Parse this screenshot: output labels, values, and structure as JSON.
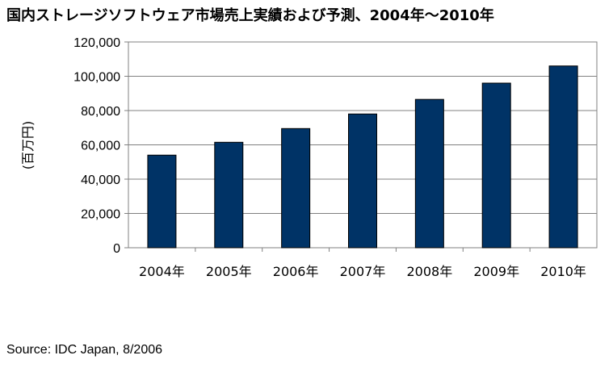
{
  "chart_data": {
    "type": "bar",
    "title": "国内ストレージソフトウェア市場売上実績および予測、2004年～2010年",
    "ylabel": "(百万円)",
    "xlabel": "",
    "categories": [
      "2004年",
      "2005年",
      "2006年",
      "2007年",
      "2008年",
      "2009年",
      "2010年"
    ],
    "values": [
      54000,
      61500,
      69500,
      78000,
      86500,
      96000,
      106000
    ],
    "ylim": [
      0,
      120000
    ],
    "y_ticks": [
      "0",
      "20,000",
      "40,000",
      "60,000",
      "80,000",
      "100,000",
      "120,000"
    ],
    "grid": true,
    "legend": "none",
    "bar_color": "#003366",
    "source": "Source: IDC Japan, 8/2006"
  }
}
